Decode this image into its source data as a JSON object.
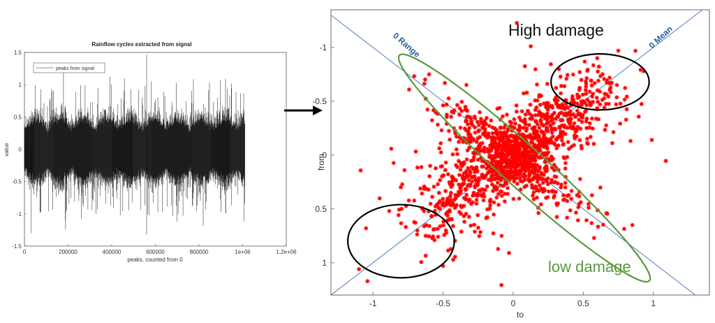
{
  "chart_data": [
    {
      "type": "line",
      "title": "Rainflow cycles extracted from signal",
      "xlabel": "peaks, counted from 0",
      "ylabel": "value",
      "xlim": [
        0,
        1200000
      ],
      "ylim": [
        -1.5,
        1.5
      ],
      "x_ticks": [
        "0",
        "200000",
        "400000",
        "600000",
        "800000",
        "1e+06",
        "1.2e+06"
      ],
      "y_ticks": [
        "1.5",
        "1",
        "0.5",
        "0",
        "-0.5",
        "-1",
        "-1.5"
      ],
      "legend": {
        "position": "top-left"
      },
      "series": [
        {
          "name": "peaks from signal",
          "color": "#000000",
          "x_range": [
            0,
            1010000
          ],
          "typical_envelope": [
            -0.55,
            0.55
          ],
          "notable_extremes": [
            {
              "x": 560000,
              "y": 1.46
            },
            {
              "x": 560000,
              "y": -1.32
            },
            {
              "x": 30000,
              "y": -1.3
            }
          ]
        }
      ]
    },
    {
      "type": "scatter",
      "xlabel": "to",
      "ylabel": "from",
      "xlim": [
        -1.3,
        1.4
      ],
      "ylim": [
        -1.35,
        1.3
      ],
      "y_inverted": true,
      "x_ticks": [
        "-1",
        "-0.5",
        "0",
        "0.5",
        "1"
      ],
      "y_ticks": [
        "-1",
        "-0.5",
        "0",
        "0.5",
        "1"
      ],
      "marker_color": "#ff0000",
      "reference_lines": [
        {
          "label": "0 Range",
          "from": [
            -1.3,
            -1.3
          ],
          "to": [
            1.4,
            1.4
          ]
        },
        {
          "label": "0 Mean",
          "from": [
            -1.3,
            1.3
          ],
          "to": [
            1.4,
            -1.4
          ]
        }
      ],
      "annotations": [
        {
          "text": "High damage",
          "color": "#111111"
        },
        {
          "text": "low damage",
          "color": "#5a9a3c"
        }
      ],
      "regions": [
        {
          "shape": "ellipse",
          "color": "#000000",
          "center": [
            0.62,
            -0.68
          ],
          "rx": 0.35,
          "ry": 0.26,
          "label_ref": "High damage"
        },
        {
          "shape": "ellipse",
          "color": "#000000",
          "center": [
            -0.8,
            0.8
          ],
          "rx": 0.38,
          "ry": 0.34
        },
        {
          "shape": "ellipse",
          "color": "#5a9a3c",
          "center": [
            0.08,
            0.12
          ],
          "major": 1.25,
          "minor": 0.2,
          "angle_deg": -42,
          "label_ref": "low damage"
        }
      ],
      "outliers": [
        [
          -1.1,
          1.06
        ],
        [
          -1.05,
          0.68
        ],
        [
          -0.62,
          0.65
        ],
        [
          0.85,
          0.65
        ],
        [
          0.93,
          -0.78
        ],
        [
          0.75,
          -0.97
        ],
        [
          -0.6,
          -0.75
        ],
        [
          0.6,
          -0.9
        ],
        [
          -0.5,
          1.03
        ],
        [
          0.2,
          -0.55
        ]
      ]
    }
  ],
  "arrow": {
    "color": "#000000"
  }
}
